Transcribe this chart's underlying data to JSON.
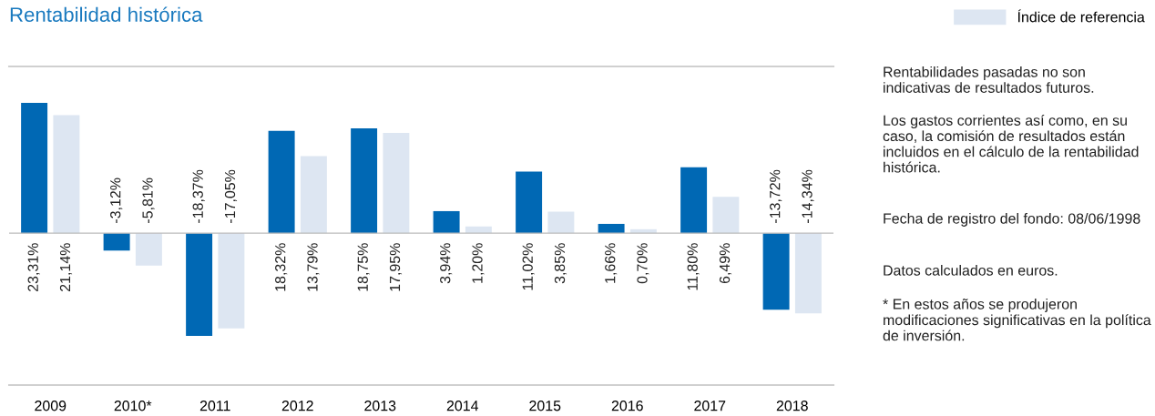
{
  "chart_data": {
    "type": "bar",
    "title": "Rentabilidad histórica",
    "categories": [
      "2009",
      "2010*",
      "2011",
      "2012",
      "2013",
      "2014",
      "2015",
      "2016",
      "2017",
      "2018"
    ],
    "series": [
      {
        "color": "#0068b4",
        "values": [
          23.31,
          -3.12,
          -18.37,
          18.32,
          18.75,
          3.94,
          11.02,
          1.66,
          11.8,
          -13.72
        ],
        "value_labels": [
          "23,31%",
          "-3,12%",
          "-18,37%",
          "18,32%",
          "18,75%",
          "3,94%",
          "11,02%",
          "1,66%",
          "11,80%",
          "-13,72%"
        ]
      },
      {
        "name": "Índice de referencia",
        "color": "#dde6f2",
        "values": [
          21.14,
          -5.81,
          -17.05,
          13.79,
          17.95,
          1.2,
          3.85,
          0.7,
          6.49,
          -14.34
        ],
        "value_labels": [
          "21,14%",
          "-5,81%",
          "-17,05%",
          "13,79%",
          "17,95%",
          "1,20%",
          "3,85%",
          "0,70%",
          "6,49%",
          "-14,34%"
        ]
      }
    ],
    "legend": "top right",
    "grid": false,
    "annotations": [
      "Rentabilidades pasadas no son indicativas de resultados futuros.",
      "Los gastos corrientes así como, en su caso, la comisión de resultados están incluidos en el cálculo de la rentabilidad histórica.",
      "Fecha de registro del fondo: 08/06/1998",
      "Datos calculados en euros.",
      "* En estos años se produjeron modificaciones significativas en la política de inversión."
    ]
  }
}
